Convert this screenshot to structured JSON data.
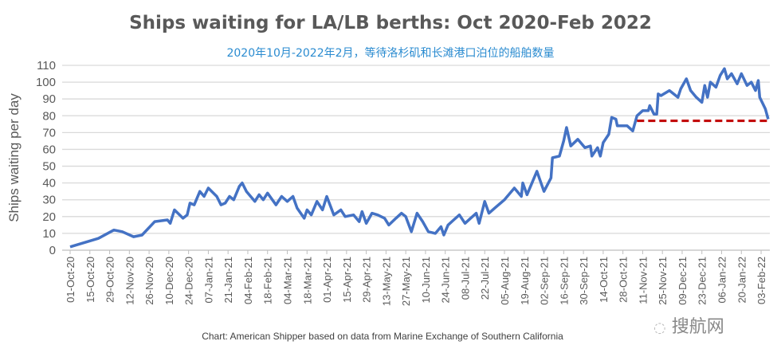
{
  "chart_data": {
    "type": "line",
    "title": "Ships waiting for LA/LB berths: Oct 2020-Feb 2022",
    "subtitle": "2020年10月-2022年2月，等待洛杉矶和长滩港口泊位的船舶数量",
    "ylabel": "Ships waiting per day",
    "xlabel": "",
    "ylim": [
      0,
      110
    ],
    "yticks": [
      0,
      10,
      20,
      30,
      40,
      50,
      60,
      70,
      80,
      90,
      100,
      110
    ],
    "grid": true,
    "xlim": [
      "2020-10-01",
      "2022-02-08"
    ],
    "xtick_labels": [
      "01-Oct-20",
      "15-Oct-20",
      "29-Oct-20",
      "12-Nov-20",
      "26-Nov-20",
      "10-Dec-20",
      "24-Dec-20",
      "07-Jan-21",
      "21-Jan-21",
      "04-Feb-21",
      "18-Feb-21",
      "04-Mar-21",
      "18-Mar-21",
      "01-Apr-21",
      "15-Apr-21",
      "29-Apr-21",
      "13-May-21",
      "27-May-21",
      "10-Jun-21",
      "24-Jun-21",
      "08-Jul-21",
      "22-Jul-21",
      "05-Aug-21",
      "19-Aug-21",
      "02-Sep-21",
      "16-Sep-21",
      "30-Sep-21",
      "14-Oct-21",
      "28-Oct-21",
      "11-Nov-21",
      "25-Nov-21",
      "09-Dec-21",
      "23-Dec-21",
      "06-Jan-22",
      "20-Jan-22",
      "03-Feb-22"
    ],
    "series": [
      {
        "color": "#4472c4",
        "x": [
          "2020-10-01",
          "2020-10-21",
          "2020-11-01",
          "2020-11-07",
          "2020-11-15",
          "2020-11-21",
          "2020-11-30",
          "2020-12-09",
          "2020-12-11",
          "2020-12-14",
          "2020-12-20",
          "2020-12-23",
          "2020-12-25",
          "2020-12-28",
          "2021-01-01",
          "2021-01-04",
          "2021-01-07",
          "2021-01-13",
          "2021-01-16",
          "2021-01-19",
          "2021-01-22",
          "2021-01-25",
          "2021-01-29",
          "2021-01-31",
          "2021-02-03",
          "2021-02-09",
          "2021-02-12",
          "2021-02-15",
          "2021-02-18",
          "2021-02-24",
          "2021-02-28",
          "2021-03-04",
          "2021-03-08",
          "2021-03-11",
          "2021-03-16",
          "2021-03-18",
          "2021-03-21",
          "2021-03-25",
          "2021-03-29",
          "2021-04-01",
          "2021-04-06",
          "2021-04-11",
          "2021-04-14",
          "2021-04-20",
          "2021-04-24",
          "2021-04-26",
          "2021-04-29",
          "2021-05-03",
          "2021-05-07",
          "2021-05-12",
          "2021-05-15",
          "2021-05-20",
          "2021-05-24",
          "2021-05-27",
          "2021-05-31",
          "2021-06-04",
          "2021-06-08",
          "2021-06-12",
          "2021-06-17",
          "2021-06-21",
          "2021-06-23",
          "2021-06-26",
          "2021-06-30",
          "2021-07-04",
          "2021-07-08",
          "2021-07-12",
          "2021-07-16",
          "2021-07-18",
          "2021-07-22",
          "2021-07-25",
          "2021-07-29",
          "2021-08-05",
          "2021-08-12",
          "2021-08-17",
          "2021-08-18",
          "2021-08-21",
          "2021-08-28",
          "2021-09-02",
          "2021-09-07",
          "2021-09-08",
          "2021-09-13",
          "2021-09-16",
          "2021-09-18",
          "2021-09-21",
          "2021-09-26",
          "2021-10-01",
          "2021-10-05",
          "2021-10-06",
          "2021-10-10",
          "2021-10-12",
          "2021-10-14",
          "2021-10-18",
          "2021-10-20",
          "2021-10-23",
          "2021-10-24",
          "2021-10-31",
          "2021-11-04",
          "2021-11-07",
          "2021-11-11",
          "2021-11-15",
          "2021-11-16",
          "2021-11-19",
          "2021-11-21",
          "2021-11-22",
          "2021-11-24",
          "2021-11-30",
          "2021-12-06",
          "2021-12-08",
          "2021-12-12",
          "2021-12-15",
          "2021-12-19",
          "2021-12-23",
          "2021-12-25",
          "2021-12-27",
          "2021-12-29",
          "2022-01-02",
          "2022-01-05",
          "2022-01-08",
          "2022-01-10",
          "2022-01-13",
          "2022-01-17",
          "2022-01-20",
          "2022-01-24",
          "2022-01-27",
          "2022-01-30",
          "2022-02-01",
          "2022-02-02",
          "2022-02-06",
          "2022-02-08"
        ],
        "values": [
          2,
          7,
          12,
          11,
          8,
          9,
          17,
          18,
          16,
          24,
          19,
          21,
          28,
          27,
          35,
          32,
          37,
          32,
          27,
          28,
          32,
          30,
          38,
          40,
          35,
          29,
          33,
          30,
          34,
          27,
          32,
          29,
          32,
          25,
          19,
          24,
          21,
          29,
          24,
          32,
          21,
          24,
          20,
          21,
          17,
          23,
          16,
          22,
          21,
          19,
          15,
          19,
          22,
          20,
          11,
          22,
          17,
          11,
          10,
          14,
          9,
          15,
          18,
          21,
          16,
          19,
          22,
          16,
          29,
          22,
          25,
          30,
          37,
          32,
          40,
          33,
          47,
          35,
          43,
          55,
          56,
          65,
          73,
          62,
          66,
          61,
          62,
          56,
          61,
          56,
          64,
          69,
          79,
          78,
          74,
          74,
          71,
          80,
          83,
          83,
          86,
          81,
          81,
          93,
          92,
          95,
          91,
          96,
          102,
          95,
          91,
          88,
          98,
          91,
          100,
          97,
          104,
          108,
          102,
          105,
          99,
          105,
          98,
          100,
          95,
          101,
          91,
          84,
          78
        ]
      }
    ],
    "reference_line": {
      "value": 77,
      "x": [
        "2021-11-07",
        "2022-02-08"
      ],
      "color": "#c00000",
      "style": "dashed"
    }
  },
  "caption": "Chart: American Shipper based on data from Marine Exchange of Southern California",
  "watermark": "搜航网"
}
